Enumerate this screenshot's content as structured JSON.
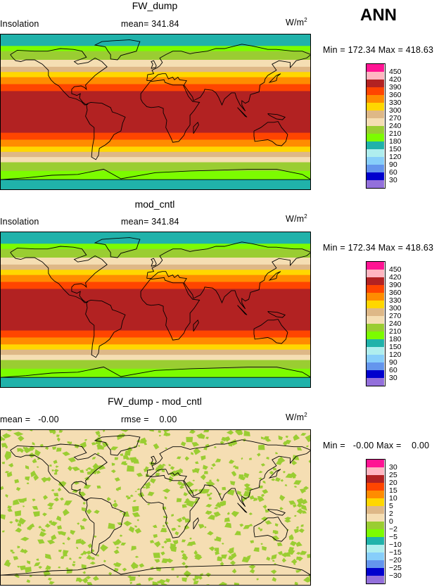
{
  "season": "ANN",
  "units_base": "W/m",
  "units_exp": "2",
  "panels": [
    {
      "title": "FW_dump",
      "left_label": "Insolation",
      "mean_label": "mean= 341.84",
      "min_max": "Min = 172.34 Max = 418.63",
      "kind": "field",
      "colorbar": {
        "labels": [
          "450",
          "420",
          "390",
          "360",
          "330",
          "300",
          "270",
          "240",
          "210",
          "180",
          "150",
          "120",
          "90",
          "60",
          "30"
        ],
        "colors": [
          "#ff1493",
          "#ffb6c1",
          "#b22222",
          "#ff4500",
          "#ff8c00",
          "#ffd700",
          "#deb887",
          "#f5deb3",
          "#9acd32",
          "#7cfc00",
          "#20b2aa",
          "#afeeee",
          "#87cefa",
          "#6495ed",
          "#0000cd",
          "#9370db"
        ]
      }
    },
    {
      "title": "mod_cntl",
      "left_label": "Insolation",
      "mean_label": "mean= 341.84",
      "min_max": "Min = 172.34 Max = 418.63",
      "kind": "field",
      "colorbar": {
        "labels": [
          "450",
          "420",
          "390",
          "360",
          "330",
          "300",
          "270",
          "240",
          "210",
          "180",
          "150",
          "120",
          "90",
          "60",
          "30"
        ],
        "colors": [
          "#ff1493",
          "#ffb6c1",
          "#b22222",
          "#ff4500",
          "#ff8c00",
          "#ffd700",
          "#deb887",
          "#f5deb3",
          "#9acd32",
          "#7cfc00",
          "#20b2aa",
          "#afeeee",
          "#87cefa",
          "#6495ed",
          "#0000cd",
          "#9370db"
        ]
      }
    },
    {
      "title": "FW_dump - mod_cntl",
      "left_label": "mean =   -0.00",
      "mean_label": "rmse =    0.00",
      "min_max": "Min =   -0.00 Max =    0.00",
      "kind": "diff",
      "colorbar": {
        "labels": [
          "30",
          "25",
          "20",
          "15",
          "10",
          "5",
          "2",
          "0",
          "−2",
          "−5",
          "−10",
          "−15",
          "−20",
          "−25",
          "−30"
        ],
        "colors": [
          "#ff1493",
          "#ffb6c1",
          "#b22222",
          "#ff4500",
          "#ff8c00",
          "#ffd700",
          "#deb887",
          "#f5deb3",
          "#9acd32",
          "#7cfc00",
          "#20b2aa",
          "#afeeee",
          "#87cefa",
          "#6495ed",
          "#0000cd",
          "#9370db"
        ]
      }
    }
  ],
  "zonal_bands": [
    {
      "lat": 90,
      "color": "#20b2aa"
    },
    {
      "lat": 76,
      "color": "#7cfc00"
    },
    {
      "lat": 70,
      "color": "#9acd32"
    },
    {
      "lat": 60,
      "color": "#f5deb3"
    },
    {
      "lat": 52,
      "color": "#deb887"
    },
    {
      "lat": 46,
      "color": "#ffd700"
    },
    {
      "lat": 40,
      "color": "#ff8c00"
    },
    {
      "lat": 32,
      "color": "#ff4500"
    },
    {
      "lat": 24,
      "color": "#b22222"
    },
    {
      "lat": -24,
      "color": "#ff4500"
    },
    {
      "lat": -32,
      "color": "#ff8c00"
    },
    {
      "lat": -40,
      "color": "#ffd700"
    },
    {
      "lat": -46,
      "color": "#deb887"
    },
    {
      "lat": -52,
      "color": "#f5deb3"
    },
    {
      "lat": -58,
      "color": "#9acd32"
    },
    {
      "lat": -68,
      "color": "#7cfc00"
    },
    {
      "lat": -78,
      "color": "#20b2aa"
    }
  ],
  "diff_colors": {
    "background": "#f5deb3",
    "speckle": "#9acd32"
  }
}
